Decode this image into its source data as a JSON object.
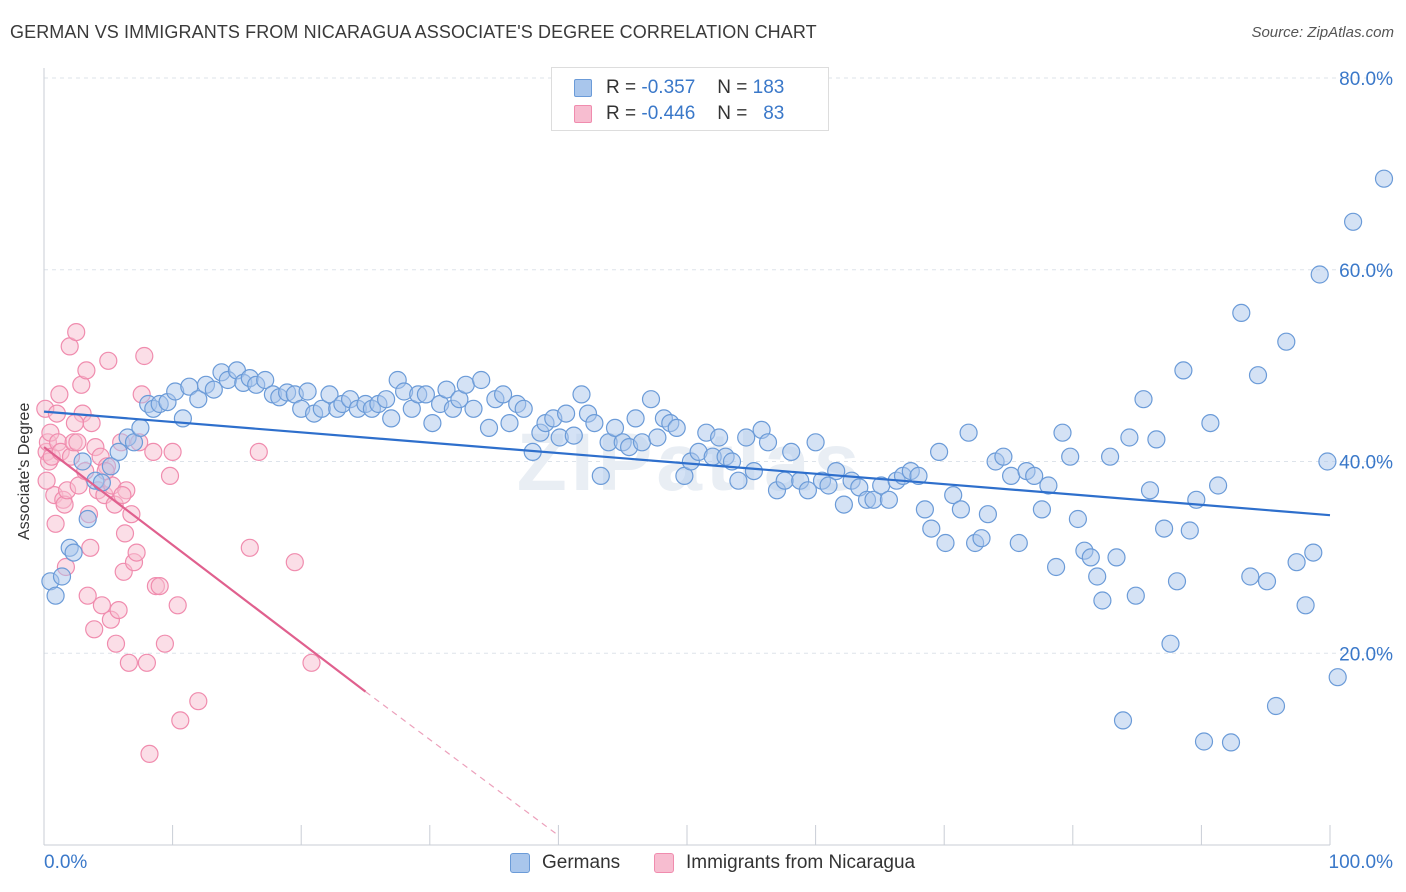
{
  "header": {
    "title": "GERMAN VS IMMIGRANTS FROM NICARAGUA ASSOCIATE'S DEGREE CORRELATION CHART",
    "source": "Source: ZipAtlas.com"
  },
  "colors": {
    "blue": "#6b9bd8",
    "blue_fill": "#a9c6ec",
    "blue_line": "#2e6fcc",
    "pink": "#f08cae",
    "pink_fill": "#f7bdd0",
    "pink_line": "#e0608e",
    "accent_text": "#3a78c9"
  },
  "legend_top": {
    "rows": [
      {
        "r_label": "R =",
        "r_value": "-0.357",
        "n_label": "N =",
        "n_value": "183"
      },
      {
        "r_label": "R =",
        "r_value": "-0.446",
        "n_label": "N =",
        "n_value": "83"
      }
    ]
  },
  "legend_bottom": {
    "items": [
      {
        "label": "Germans"
      },
      {
        "label": "Immigrants from Nicaragua"
      }
    ]
  },
  "axis": {
    "x_min_label": "0.0%",
    "x_max_label": "100.0%",
    "ylabel": "Associate's Degree",
    "ytick_labels": [
      "20.0%",
      "40.0%",
      "60.0%",
      "80.0%"
    ]
  },
  "watermark": "ZIPatlas",
  "chart_data": {
    "type": "scatter",
    "title": "GERMAN VS IMMIGRANTS FROM NICARAGUA ASSOCIATE'S DEGREE CORRELATION CHART",
    "xlabel": "",
    "ylabel": "Associate's Degree",
    "xlim": [
      0,
      100
    ],
    "ylim": [
      0,
      80
    ],
    "yticks": [
      20,
      40,
      60,
      80
    ],
    "grid": true,
    "legend_position": "top-center and bottom",
    "series": [
      {
        "name": "Germans",
        "r": -0.357,
        "n": 183,
        "trend": {
          "x": [
            0,
            100
          ],
          "y": [
            45.2,
            34.4
          ],
          "style": "solid"
        },
        "points": [
          [
            0.5,
            27.5
          ],
          [
            0.9,
            26.0
          ],
          [
            1.4,
            28.0
          ],
          [
            2.0,
            31.0
          ],
          [
            2.3,
            30.5
          ],
          [
            3.0,
            40.0
          ],
          [
            3.4,
            34.0
          ],
          [
            4.0,
            38.0
          ],
          [
            4.5,
            37.8
          ],
          [
            5.2,
            39.5
          ],
          [
            5.8,
            41.0
          ],
          [
            6.5,
            42.5
          ],
          [
            7.0,
            42.0
          ],
          [
            7.5,
            43.5
          ],
          [
            8.1,
            46.0
          ],
          [
            8.5,
            45.5
          ],
          [
            9.0,
            46.0
          ],
          [
            9.6,
            46.2
          ],
          [
            10.2,
            47.3
          ],
          [
            10.8,
            44.5
          ],
          [
            11.3,
            47.8
          ],
          [
            12.0,
            46.5
          ],
          [
            12.6,
            48.0
          ],
          [
            13.2,
            47.5
          ],
          [
            13.8,
            49.3
          ],
          [
            14.3,
            48.5
          ],
          [
            15.0,
            49.5
          ],
          [
            15.5,
            48.2
          ],
          [
            16.0,
            48.7
          ],
          [
            16.5,
            48.0
          ],
          [
            17.2,
            48.5
          ],
          [
            17.8,
            47.0
          ],
          [
            18.3,
            46.7
          ],
          [
            18.9,
            47.2
          ],
          [
            19.5,
            47.0
          ],
          [
            20.0,
            45.5
          ],
          [
            20.5,
            47.3
          ],
          [
            21.0,
            45.0
          ],
          [
            21.6,
            45.5
          ],
          [
            22.2,
            47.0
          ],
          [
            22.8,
            45.5
          ],
          [
            23.2,
            46.0
          ],
          [
            23.8,
            46.5
          ],
          [
            24.4,
            45.5
          ],
          [
            25.0,
            46.0
          ],
          [
            25.5,
            45.5
          ],
          [
            26.0,
            46.0
          ],
          [
            26.6,
            46.5
          ],
          [
            27.0,
            44.5
          ],
          [
            27.5,
            48.5
          ],
          [
            28.0,
            47.3
          ],
          [
            28.6,
            45.5
          ],
          [
            29.1,
            47.0
          ],
          [
            29.7,
            47.0
          ],
          [
            30.2,
            44.0
          ],
          [
            30.8,
            46.0
          ],
          [
            31.3,
            47.5
          ],
          [
            31.8,
            45.5
          ],
          [
            32.3,
            46.5
          ],
          [
            32.8,
            48.0
          ],
          [
            33.4,
            45.5
          ],
          [
            34.0,
            48.5
          ],
          [
            34.6,
            43.5
          ],
          [
            35.1,
            46.5
          ],
          [
            35.7,
            47.0
          ],
          [
            36.2,
            44.0
          ],
          [
            36.8,
            46.0
          ],
          [
            37.3,
            45.5
          ],
          [
            38.0,
            41.0
          ],
          [
            38.6,
            43.0
          ],
          [
            39.0,
            44.0
          ],
          [
            39.6,
            44.5
          ],
          [
            40.1,
            42.5
          ],
          [
            40.6,
            45.0
          ],
          [
            41.2,
            42.7
          ],
          [
            41.8,
            47.0
          ],
          [
            42.3,
            45.0
          ],
          [
            42.8,
            44.0
          ],
          [
            43.3,
            38.5
          ],
          [
            43.9,
            42.0
          ],
          [
            44.4,
            43.5
          ],
          [
            45.0,
            42.0
          ],
          [
            45.5,
            41.5
          ],
          [
            46.0,
            44.5
          ],
          [
            46.5,
            42.0
          ],
          [
            47.2,
            46.5
          ],
          [
            47.7,
            42.5
          ],
          [
            48.2,
            44.5
          ],
          [
            48.7,
            44.0
          ],
          [
            49.2,
            43.5
          ],
          [
            49.8,
            38.5
          ],
          [
            50.3,
            40.0
          ],
          [
            50.9,
            41.0
          ],
          [
            51.5,
            43.0
          ],
          [
            52.0,
            40.5
          ],
          [
            52.5,
            42.5
          ],
          [
            53.0,
            40.5
          ],
          [
            53.5,
            40.0
          ],
          [
            54.0,
            38.0
          ],
          [
            54.6,
            42.5
          ],
          [
            55.2,
            39.0
          ],
          [
            55.8,
            43.3
          ],
          [
            56.3,
            42.0
          ],
          [
            57.0,
            37.0
          ],
          [
            57.6,
            38.0
          ],
          [
            58.1,
            41.0
          ],
          [
            58.8,
            38.0
          ],
          [
            59.4,
            37.0
          ],
          [
            60.0,
            42.0
          ],
          [
            60.5,
            38.0
          ],
          [
            61.0,
            37.5
          ],
          [
            61.6,
            39.0
          ],
          [
            62.2,
            35.5
          ],
          [
            62.8,
            38.0
          ],
          [
            63.4,
            37.3
          ],
          [
            64.0,
            36.0
          ],
          [
            64.5,
            36.0
          ],
          [
            65.1,
            37.5
          ],
          [
            65.7,
            36.0
          ],
          [
            66.3,
            38.0
          ],
          [
            66.8,
            38.5
          ],
          [
            67.4,
            39.0
          ],
          [
            68.0,
            38.5
          ],
          [
            68.5,
            35.0
          ],
          [
            69.0,
            33.0
          ],
          [
            69.6,
            41.0
          ],
          [
            70.1,
            31.5
          ],
          [
            70.7,
            36.5
          ],
          [
            71.3,
            35.0
          ],
          [
            71.9,
            43.0
          ],
          [
            72.4,
            31.5
          ],
          [
            72.9,
            32.0
          ],
          [
            73.4,
            34.5
          ],
          [
            74.0,
            40.0
          ],
          [
            74.6,
            40.5
          ],
          [
            75.2,
            38.5
          ],
          [
            75.8,
            31.5
          ],
          [
            76.4,
            39.0
          ],
          [
            77.0,
            38.5
          ],
          [
            77.6,
            35.0
          ],
          [
            78.1,
            37.5
          ],
          [
            78.7,
            29.0
          ],
          [
            79.2,
            43.0
          ],
          [
            79.8,
            40.5
          ],
          [
            80.4,
            34.0
          ],
          [
            80.9,
            30.7
          ],
          [
            81.4,
            30.0
          ],
          [
            81.9,
            28.0
          ],
          [
            82.3,
            25.5
          ],
          [
            82.9,
            40.5
          ],
          [
            83.4,
            30.0
          ],
          [
            83.9,
            13.0
          ],
          [
            84.4,
            42.5
          ],
          [
            84.9,
            26.0
          ],
          [
            85.5,
            46.5
          ],
          [
            86.0,
            37.0
          ],
          [
            86.5,
            42.3
          ],
          [
            87.1,
            33.0
          ],
          [
            87.6,
            21.0
          ],
          [
            88.1,
            27.5
          ],
          [
            88.6,
            49.5
          ],
          [
            89.1,
            32.8
          ],
          [
            89.6,
            36.0
          ],
          [
            90.2,
            10.8
          ],
          [
            90.7,
            44.0
          ],
          [
            91.3,
            37.5
          ],
          [
            92.3,
            10.7
          ],
          [
            93.1,
            55.5
          ],
          [
            93.8,
            28.0
          ],
          [
            94.4,
            49.0
          ],
          [
            95.1,
            27.5
          ],
          [
            95.8,
            14.5
          ],
          [
            96.6,
            52.5
          ],
          [
            97.4,
            29.5
          ],
          [
            98.1,
            25.0
          ],
          [
            98.7,
            30.5
          ],
          [
            99.2,
            59.5
          ],
          [
            99.8,
            40.0
          ],
          [
            100.6,
            17.5
          ],
          [
            101.8,
            65.0
          ],
          [
            104.2,
            69.5
          ]
        ]
      },
      {
        "name": "Immigrants from Nicaragua",
        "r": -0.446,
        "n": 83,
        "trend": {
          "x": [
            0,
            25
          ],
          "y": [
            41.5,
            16.0
          ],
          "style": "solid",
          "extended_dashed_to": [
            40,
            1.0
          ]
        },
        "points": [
          [
            0.1,
            45.5
          ],
          [
            0.2,
            41.0
          ],
          [
            0.3,
            42.0
          ],
          [
            0.4,
            40.0
          ],
          [
            0.5,
            43.0
          ],
          [
            0.6,
            40.5
          ],
          [
            0.8,
            36.5
          ],
          [
            0.9,
            33.5
          ],
          [
            1.0,
            45.0
          ],
          [
            1.1,
            42.0
          ],
          [
            1.3,
            41.0
          ],
          [
            1.5,
            36.0
          ],
          [
            1.6,
            35.5
          ],
          [
            1.7,
            29.0
          ],
          [
            1.8,
            37.0
          ],
          [
            2.0,
            52.0
          ],
          [
            2.1,
            40.5
          ],
          [
            2.3,
            42.0
          ],
          [
            2.5,
            53.5
          ],
          [
            2.6,
            42.0
          ],
          [
            2.7,
            37.5
          ],
          [
            2.9,
            48.0
          ],
          [
            3.0,
            45.0
          ],
          [
            3.2,
            39.0
          ],
          [
            3.3,
            49.5
          ],
          [
            3.4,
            26.0
          ],
          [
            3.5,
            34.5
          ],
          [
            3.7,
            44.0
          ],
          [
            3.9,
            22.5
          ],
          [
            4.0,
            41.5
          ],
          [
            4.2,
            37.0
          ],
          [
            4.4,
            40.5
          ],
          [
            4.5,
            25.0
          ],
          [
            4.7,
            36.5
          ],
          [
            4.9,
            39.5
          ],
          [
            5.0,
            50.5
          ],
          [
            5.2,
            23.5
          ],
          [
            5.3,
            37.5
          ],
          [
            5.5,
            35.5
          ],
          [
            5.6,
            21.0
          ],
          [
            5.8,
            24.5
          ],
          [
            6.0,
            42.0
          ],
          [
            6.2,
            28.5
          ],
          [
            6.3,
            32.5
          ],
          [
            6.4,
            37.0
          ],
          [
            6.6,
            19.0
          ],
          [
            6.8,
            34.5
          ],
          [
            7.0,
            29.5
          ],
          [
            7.2,
            30.5
          ],
          [
            7.4,
            42.0
          ],
          [
            7.6,
            47.0
          ],
          [
            7.8,
            51.0
          ],
          [
            8.0,
            19.0
          ],
          [
            8.2,
            9.5
          ],
          [
            8.5,
            41.0
          ],
          [
            8.7,
            27.0
          ],
          [
            9.0,
            27.0
          ],
          [
            9.4,
            21.0
          ],
          [
            9.8,
            38.5
          ],
          [
            10.0,
            41.0
          ],
          [
            10.4,
            25.0
          ],
          [
            10.6,
            13.0
          ],
          [
            12.0,
            15.0
          ],
          [
            16.0,
            31.0
          ],
          [
            16.7,
            41.0
          ],
          [
            19.5,
            29.5
          ],
          [
            20.8,
            19.0
          ],
          [
            0.2,
            38.0
          ],
          [
            1.2,
            47.0
          ],
          [
            2.4,
            44.0
          ],
          [
            3.6,
            31.0
          ],
          [
            4.8,
            39.0
          ],
          [
            6.1,
            36.5
          ]
        ]
      }
    ]
  }
}
